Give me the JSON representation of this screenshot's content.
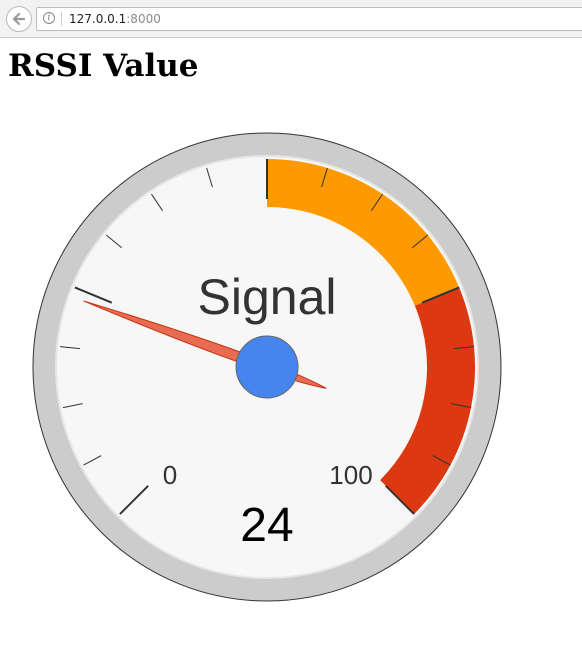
{
  "browser": {
    "url_host": "127.0.0.1",
    "url_port": ":8000",
    "info_icon_glyph": "i",
    "back_icon": "arrow-left-icon"
  },
  "page": {
    "title": "RSSI Value"
  },
  "gauge": {
    "label": "Signal",
    "value": 24,
    "value_text": "24",
    "min": 0,
    "max": 100,
    "min_label": "0",
    "max_label": "100",
    "major_ticks": 5,
    "minor_ticks": 3,
    "bands": [
      {
        "from": 50,
        "to": 75,
        "color": "#ff9900"
      },
      {
        "from": 75,
        "to": 100,
        "color": "#dc3912"
      }
    ],
    "colors": {
      "outer_ring": "#cccccc",
      "face": "#f7f7f7",
      "inner_rim": "#e6e6e6",
      "needle": "#e7711b",
      "needle_fill": "#e86c54",
      "hub": "#4684ee",
      "hub_stroke": "#666666",
      "label": "#333333",
      "value": "#000000",
      "tick": "#333333"
    }
  }
}
